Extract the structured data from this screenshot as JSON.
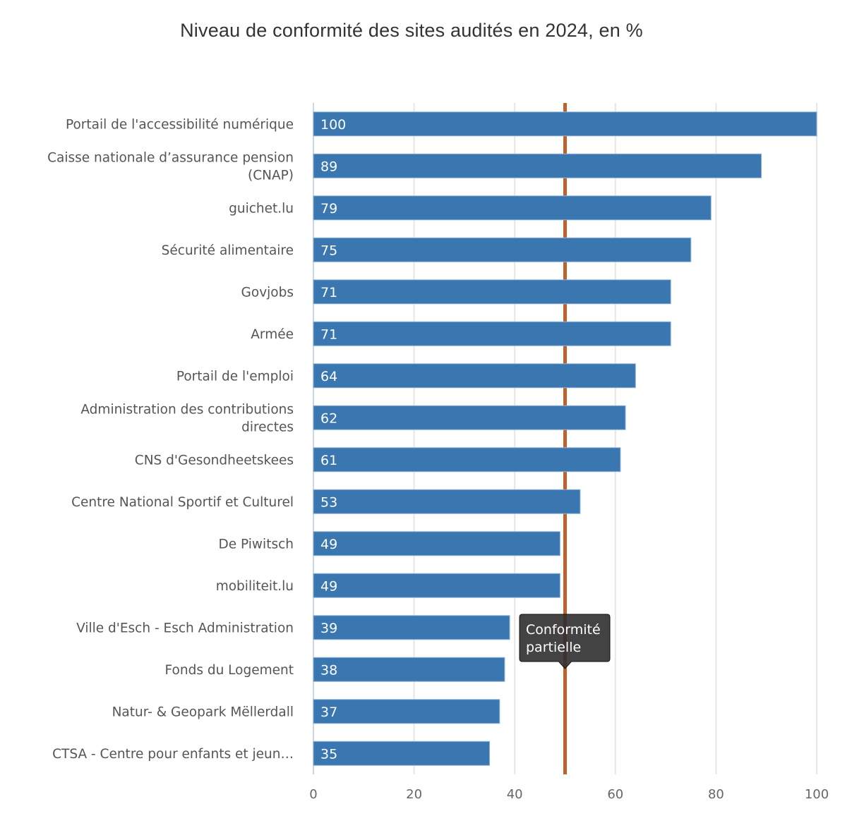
{
  "chart_data": {
    "type": "bar",
    "orientation": "horizontal",
    "title": "Niveau de conformité des sites audités en 2024, en %",
    "xlabel": "",
    "ylabel": "",
    "xlim": [
      0,
      100
    ],
    "xticks": [
      "0",
      "20",
      "40",
      "60",
      "80",
      "100"
    ],
    "tick_values": [
      0,
      20,
      40,
      60,
      80,
      100
    ],
    "grid": true,
    "categories": [
      [
        "Portail de l'accessibilité numérique"
      ],
      [
        "Caisse nationale d’assurance pension",
        "(CNAP)"
      ],
      [
        "guichet.lu"
      ],
      [
        "Sécurité alimentaire"
      ],
      [
        "Govjobs"
      ],
      [
        "Armée"
      ],
      [
        "Portail de l'emploi"
      ],
      [
        "Administration des contributions",
        "directes"
      ],
      [
        "CNS d'Gesondheetskees"
      ],
      [
        "Centre National Sportif et Culturel"
      ],
      [
        "De Piwitsch"
      ],
      [
        "mobiliteit.lu"
      ],
      [
        "Ville d'Esch - Esch Administration"
      ],
      [
        "Fonds du Logement"
      ],
      [
        "Natur- & Geopark Mëllerdall"
      ],
      [
        "CTSA - Centre pour enfants et jeun…"
      ]
    ],
    "values": [
      100,
      89,
      79,
      75,
      71,
      71,
      64,
      62,
      61,
      53,
      49,
      49,
      39,
      38,
      37,
      35
    ],
    "data_labels": [
      "100",
      "89",
      "79",
      "75",
      "71",
      "71",
      "64",
      "62",
      "61",
      "53",
      "49",
      "49",
      "39",
      "38",
      "37",
      "35"
    ],
    "plot_line": {
      "value": 50,
      "label": [
        "Conformité",
        "partielle"
      ]
    },
    "colors": {
      "bar": "#3a76b0",
      "bar_border": "#8fb3d6",
      "plot_line": "#c0602a",
      "grid": "#e6e6e6",
      "tooltip_bg": "#2f2f2f"
    }
  }
}
